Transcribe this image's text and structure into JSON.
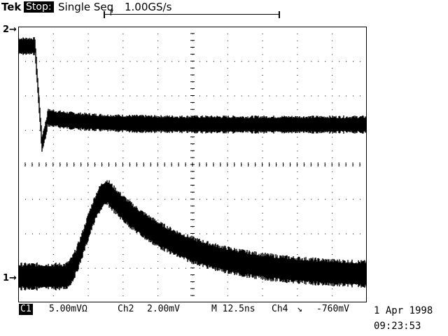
{
  "header": {
    "brand": "Tek",
    "mode": "Stop:",
    "trigger": "Single Seq",
    "sample_rate": "1.00GS/s",
    "record_marker": "T"
  },
  "markers": {
    "ch2": "2",
    "ch1": "1"
  },
  "readout": {
    "ch1": "C1",
    "ch1_scale": "5.00mVΩ",
    "ch2": "Ch2",
    "ch2_scale": "2.00mV",
    "timebase": "M 12.5ns",
    "trig_source": "Ch4",
    "trig_slope": "↘",
    "trig_level": "-760mV"
  },
  "timestamp": {
    "date": "1 Apr 1998",
    "time": "09:23:53"
  },
  "colors": {
    "trace": "#000000",
    "background": "#ffffff"
  }
}
